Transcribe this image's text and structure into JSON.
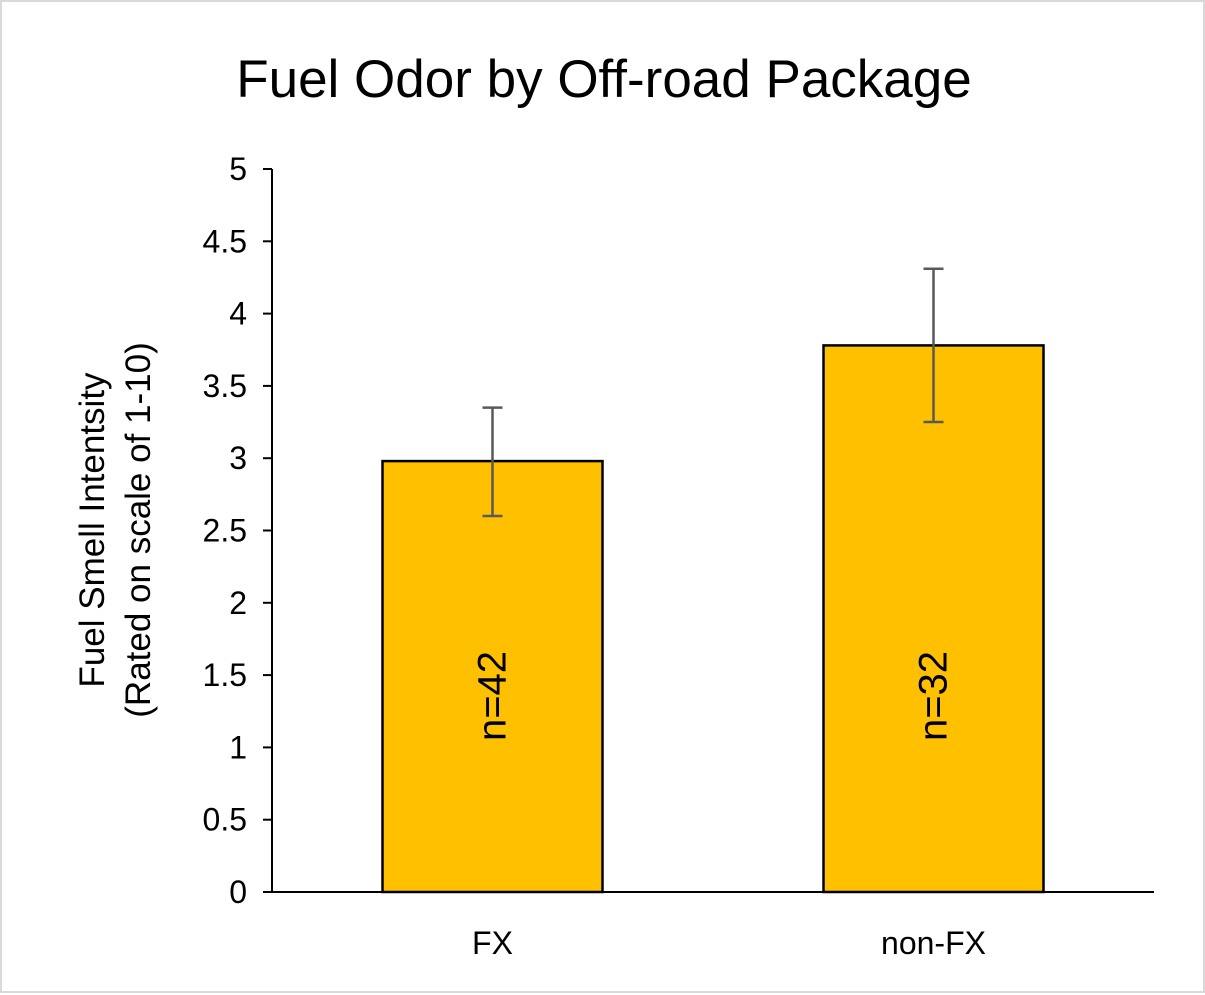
{
  "chart_data": {
    "type": "bar",
    "title": "Fuel Odor by Off-road Package",
    "xlabel": "",
    "ylabel_lines": [
      "Fuel Smell Intentsity",
      "(Rated on scale of 1-10)"
    ],
    "categories": [
      "FX",
      "non-FX"
    ],
    "values": [
      2.98,
      3.78
    ],
    "error_low": [
      2.6,
      3.25
    ],
    "error_high": [
      3.35,
      4.31
    ],
    "bar_labels": [
      "n=42",
      "n=32"
    ],
    "ylim": [
      0,
      5
    ],
    "yticks": [
      0,
      0.5,
      1,
      1.5,
      2,
      2.5,
      3,
      3.5,
      4,
      4.5,
      5
    ],
    "ytick_labels": [
      "0",
      "0.5",
      "1",
      "1.5",
      "2",
      "2.5",
      "3",
      "3.5",
      "4",
      "4.5",
      "5"
    ],
    "grid": false,
    "legend": "none",
    "colors": {
      "bar_fill": "#FFC000",
      "bar_stroke": "#000000",
      "error_bar": "#595959",
      "axis": "#000000"
    }
  }
}
